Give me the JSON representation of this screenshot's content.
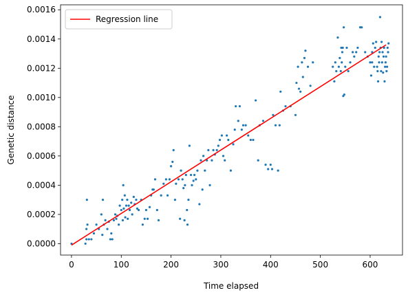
{
  "chart_data": {
    "type": "scatter",
    "xlabel": "Time elapsed",
    "ylabel": "Genetic distance",
    "xlim": [
      -22,
      665
    ],
    "ylim": [
      -7.8e-05,
      0.001634
    ],
    "xticks": [
      0,
      100,
      200,
      300,
      400,
      500,
      600
    ],
    "xtick_labels": [
      "0",
      "100",
      "200",
      "300",
      "400",
      "500",
      "600"
    ],
    "yticks": [
      0,
      0.0002,
      0.0004,
      0.0006,
      0.0008,
      0.001,
      0.0012,
      0.0014,
      0.0016
    ],
    "ytick_labels": [
      "0.0000",
      "0.0002",
      "0.0004",
      "0.0006",
      "0.0008",
      "0.0010",
      "0.0012",
      "0.0014",
      "0.0016"
    ],
    "grid": false,
    "legend_position": "top-left",
    "colors": {
      "points": "#1f77b4",
      "regression": "#ff0000"
    },
    "series": [
      {
        "kind": "scatter",
        "points": [
          [
            0,
            0.0
          ],
          [
            28,
            0.0
          ],
          [
            30,
            3e-05
          ],
          [
            30,
            0.0001
          ],
          [
            32,
            0.00013
          ],
          [
            31,
            0.0003
          ],
          [
            35,
            3e-05
          ],
          [
            40,
            3e-05
          ],
          [
            45,
            7e-05
          ],
          [
            50,
            0.00013
          ],
          [
            55,
            0.0001
          ],
          [
            60,
            0.0002
          ],
          [
            62,
            6e-05
          ],
          [
            63,
            0.0003
          ],
          [
            65,
            0.00013
          ],
          [
            68,
            0.00016
          ],
          [
            72,
            0.0001
          ],
          [
            75,
            0.00015
          ],
          [
            78,
            3e-05
          ],
          [
            80,
            7e-05
          ],
          [
            82,
            3e-05
          ],
          [
            85,
            0.00016
          ],
          [
            88,
            0.0002
          ],
          [
            90,
            0.00017
          ],
          [
            92,
            0.00019
          ],
          [
            95,
            0.00013
          ],
          [
            97,
            0.00026
          ],
          [
            100,
            0.00023
          ],
          [
            102,
            0.0003
          ],
          [
            103,
            0.00016
          ],
          [
            104,
            0.0004
          ],
          [
            105,
            0.00024
          ],
          [
            107,
            0.00033
          ],
          [
            108,
            0.00018
          ],
          [
            110,
            0.00026
          ],
          [
            112,
            0.0003
          ],
          [
            113,
            0.00017
          ],
          [
            115,
            0.00026
          ],
          [
            117,
            0.00023
          ],
          [
            120,
            0.00028
          ],
          [
            122,
            0.0002
          ],
          [
            125,
            0.00032
          ],
          [
            127,
            0.00027
          ],
          [
            130,
            0.0003
          ],
          [
            132,
            0.00024
          ],
          [
            135,
            0.00023
          ],
          [
            140,
            0.0003
          ],
          [
            143,
            0.00013
          ],
          [
            147,
            0.00017
          ],
          [
            150,
            0.00023
          ],
          [
            153,
            0.00017
          ],
          [
            157,
            0.00025
          ],
          [
            160,
            0.00033
          ],
          [
            163,
            0.00037
          ],
          [
            165,
            0.00037
          ],
          [
            168,
            0.00044
          ],
          [
            172,
            0.00023
          ],
          [
            175,
            0.00016
          ],
          [
            180,
            0.00033
          ],
          [
            185,
            0.00041
          ],
          [
            190,
            0.00044
          ],
          [
            193,
            0.00033
          ],
          [
            197,
            0.00044
          ],
          [
            200,
            0.00053
          ],
          [
            203,
            0.00056
          ],
          [
            205,
            0.00064
          ],
          [
            208,
            0.0003
          ],
          [
            210,
            0.00041
          ],
          [
            215,
            0.00044
          ],
          [
            218,
            0.00017
          ],
          [
            220,
            0.0005
          ],
          [
            223,
            0.00044
          ],
          [
            225,
            0.00038
          ],
          [
            227,
            0.00016
          ],
          [
            228,
            0.0004
          ],
          [
            230,
            0.00047
          ],
          [
            232,
            0.00023
          ],
          [
            233,
            0.00013
          ],
          [
            235,
            0.0003
          ],
          [
            237,
            0.00067
          ],
          [
            240,
            0.00047
          ],
          [
            242,
            0.0004
          ],
          [
            245,
            0.00043
          ],
          [
            247,
            0.00047
          ],
          [
            250,
            0.00044
          ],
          [
            253,
            0.0005
          ],
          [
            257,
            0.00027
          ],
          [
            260,
            0.00057
          ],
          [
            263,
            0.00037
          ],
          [
            265,
            0.0006
          ],
          [
            268,
            0.0005
          ],
          [
            272,
            0.00057
          ],
          [
            275,
            0.00064
          ],
          [
            278,
            0.0004
          ],
          [
            282,
            0.00057
          ],
          [
            285,
            0.00064
          ],
          [
            288,
            0.00061
          ],
          [
            292,
            0.00064
          ],
          [
            295,
            0.00067
          ],
          [
            298,
            0.00071
          ],
          [
            302,
            0.00074
          ],
          [
            305,
            0.0006
          ],
          [
            308,
            0.00057
          ],
          [
            312,
            0.00074
          ],
          [
            315,
            0.00071
          ],
          [
            320,
            0.0005
          ],
          [
            325,
            0.00068
          ],
          [
            328,
            0.00078
          ],
          [
            330,
            0.00094
          ],
          [
            335,
            0.00084
          ],
          [
            338,
            0.00094
          ],
          [
            342,
            0.00078
          ],
          [
            345,
            0.00081
          ],
          [
            350,
            0.00081
          ],
          [
            355,
            0.00074
          ],
          [
            360,
            0.00071
          ],
          [
            365,
            0.00071
          ],
          [
            370,
            0.00098
          ],
          [
            375,
            0.00057
          ],
          [
            378,
            0.00081
          ],
          [
            385,
            0.00084
          ],
          [
            390,
            0.00054
          ],
          [
            395,
            0.00051
          ],
          [
            400,
            0.00054
          ],
          [
            403,
            0.00051
          ],
          [
            405,
            0.00088
          ],
          [
            410,
            0.00081
          ],
          [
            415,
            0.0005
          ],
          [
            418,
            0.00081
          ],
          [
            420,
            0.00104
          ],
          [
            425,
            0.00091
          ],
          [
            430,
            0.00094
          ],
          [
            440,
            0.00094
          ],
          [
            450,
            0.00088
          ],
          [
            452,
            0.0011
          ],
          [
            455,
            0.00121
          ],
          [
            457,
            0.00106
          ],
          [
            460,
            0.00104
          ],
          [
            463,
            0.00124
          ],
          [
            465,
            0.00114
          ],
          [
            468,
            0.00127
          ],
          [
            470,
            0.00132
          ],
          [
            475,
            0.00121
          ],
          [
            480,
            0.00108
          ],
          [
            485,
            0.00124
          ],
          [
            525,
            0.00121
          ],
          [
            528,
            0.00111
          ],
          [
            530,
            0.00124
          ],
          [
            532,
            0.00118
          ],
          [
            535,
            0.00141
          ],
          [
            537,
            0.00121
          ],
          [
            539,
            0.00127
          ],
          [
            541,
            0.00118
          ],
          [
            542,
            0.00134
          ],
          [
            543,
            0.00124
          ],
          [
            544,
            0.00131
          ],
          [
            545,
            0.00134
          ],
          [
            546,
            0.00101
          ],
          [
            547,
            0.00148
          ],
          [
            548,
            0.00102
          ],
          [
            550,
            0.00121
          ],
          [
            553,
            0.00134
          ],
          [
            556,
            0.00118
          ],
          [
            560,
            0.00124
          ],
          [
            565,
            0.00131
          ],
          [
            568,
            0.00128
          ],
          [
            572,
            0.00131
          ],
          [
            575,
            0.00134
          ],
          [
            580,
            0.00148
          ],
          [
            583,
            0.00148
          ],
          [
            590,
            0.00131
          ],
          [
            595,
            0.00128
          ],
          [
            600,
            0.00124
          ],
          [
            602,
            0.00115
          ],
          [
            604,
            0.00131
          ],
          [
            606,
            0.00137
          ],
          [
            608,
            0.00121
          ],
          [
            610,
            0.00134
          ],
          [
            612,
            0.00138
          ],
          [
            614,
            0.00121
          ],
          [
            615,
            0.00118
          ],
          [
            616,
            0.00111
          ],
          [
            617,
            0.00128
          ],
          [
            618,
            0.00124
          ],
          [
            619,
            0.00131
          ],
          [
            620,
            0.00155
          ],
          [
            621,
            0.00134
          ],
          [
            622,
            0.00118
          ],
          [
            623,
            0.00138
          ],
          [
            624,
            0.00124
          ],
          [
            625,
            0.00131
          ],
          [
            626,
            0.00117
          ],
          [
            627,
            0.00128
          ],
          [
            628,
            0.00134
          ],
          [
            629,
            0.00111
          ],
          [
            630,
            0.00121
          ],
          [
            631,
            0.00124
          ],
          [
            632,
            0.00128
          ],
          [
            633,
            0.00118
          ],
          [
            634,
            0.00121
          ],
          [
            635,
            0.00134
          ],
          [
            636,
            0.00131
          ],
          [
            637,
            0.00137
          ],
          [
            604,
            0.00124
          ]
        ]
      },
      {
        "kind": "line",
        "name": "Regression line",
        "points": [
          [
            0,
            -1e-05
          ],
          [
            632,
            0.00136
          ]
        ]
      }
    ]
  }
}
